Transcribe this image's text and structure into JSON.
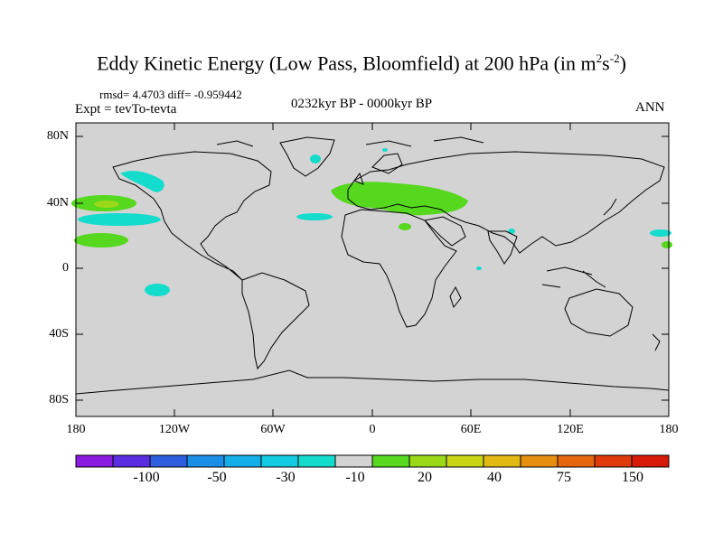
{
  "title": {
    "text": "Eddy Kinetic Energy (Low Pass, Bloomfield) at 200 hPa (in m",
    "sup1": "2",
    "s": "s",
    "sup2": "-2",
    "close": ")"
  },
  "stats": {
    "rmsd_diff": "rmsd= 4.4703 diff= -0.959442",
    "expt": "Expt = tevTo-tevta",
    "period": "0232kyr BP - 0000kyr BP",
    "season": "ANN"
  },
  "axes": {
    "y_ticks": [
      "80N",
      "40N",
      "0",
      "40S",
      "80S"
    ],
    "x_ticks": [
      "180",
      "120W",
      "60W",
      "0",
      "60E",
      "120E",
      "180"
    ]
  },
  "colorbar": {
    "colors": [
      "#8a1be0",
      "#5a2de0",
      "#2f5de0",
      "#1a8fe8",
      "#14aee8",
      "#12cbe0",
      "#14dccc",
      "#d3d3d3",
      "#55d81e",
      "#9bd817",
      "#c8d414",
      "#e2b812",
      "#e68e10",
      "#e6660e",
      "#e03a0c",
      "#d81a0a"
    ],
    "labels": [
      "-100",
      "-50",
      "-30",
      "-10",
      "20",
      "40",
      "75",
      "150"
    ]
  },
  "colors": {
    "land_ocean_zero": "#d3d3d3",
    "positive": "#55d81e",
    "negative": "#14dccc",
    "coast": "#000000"
  }
}
